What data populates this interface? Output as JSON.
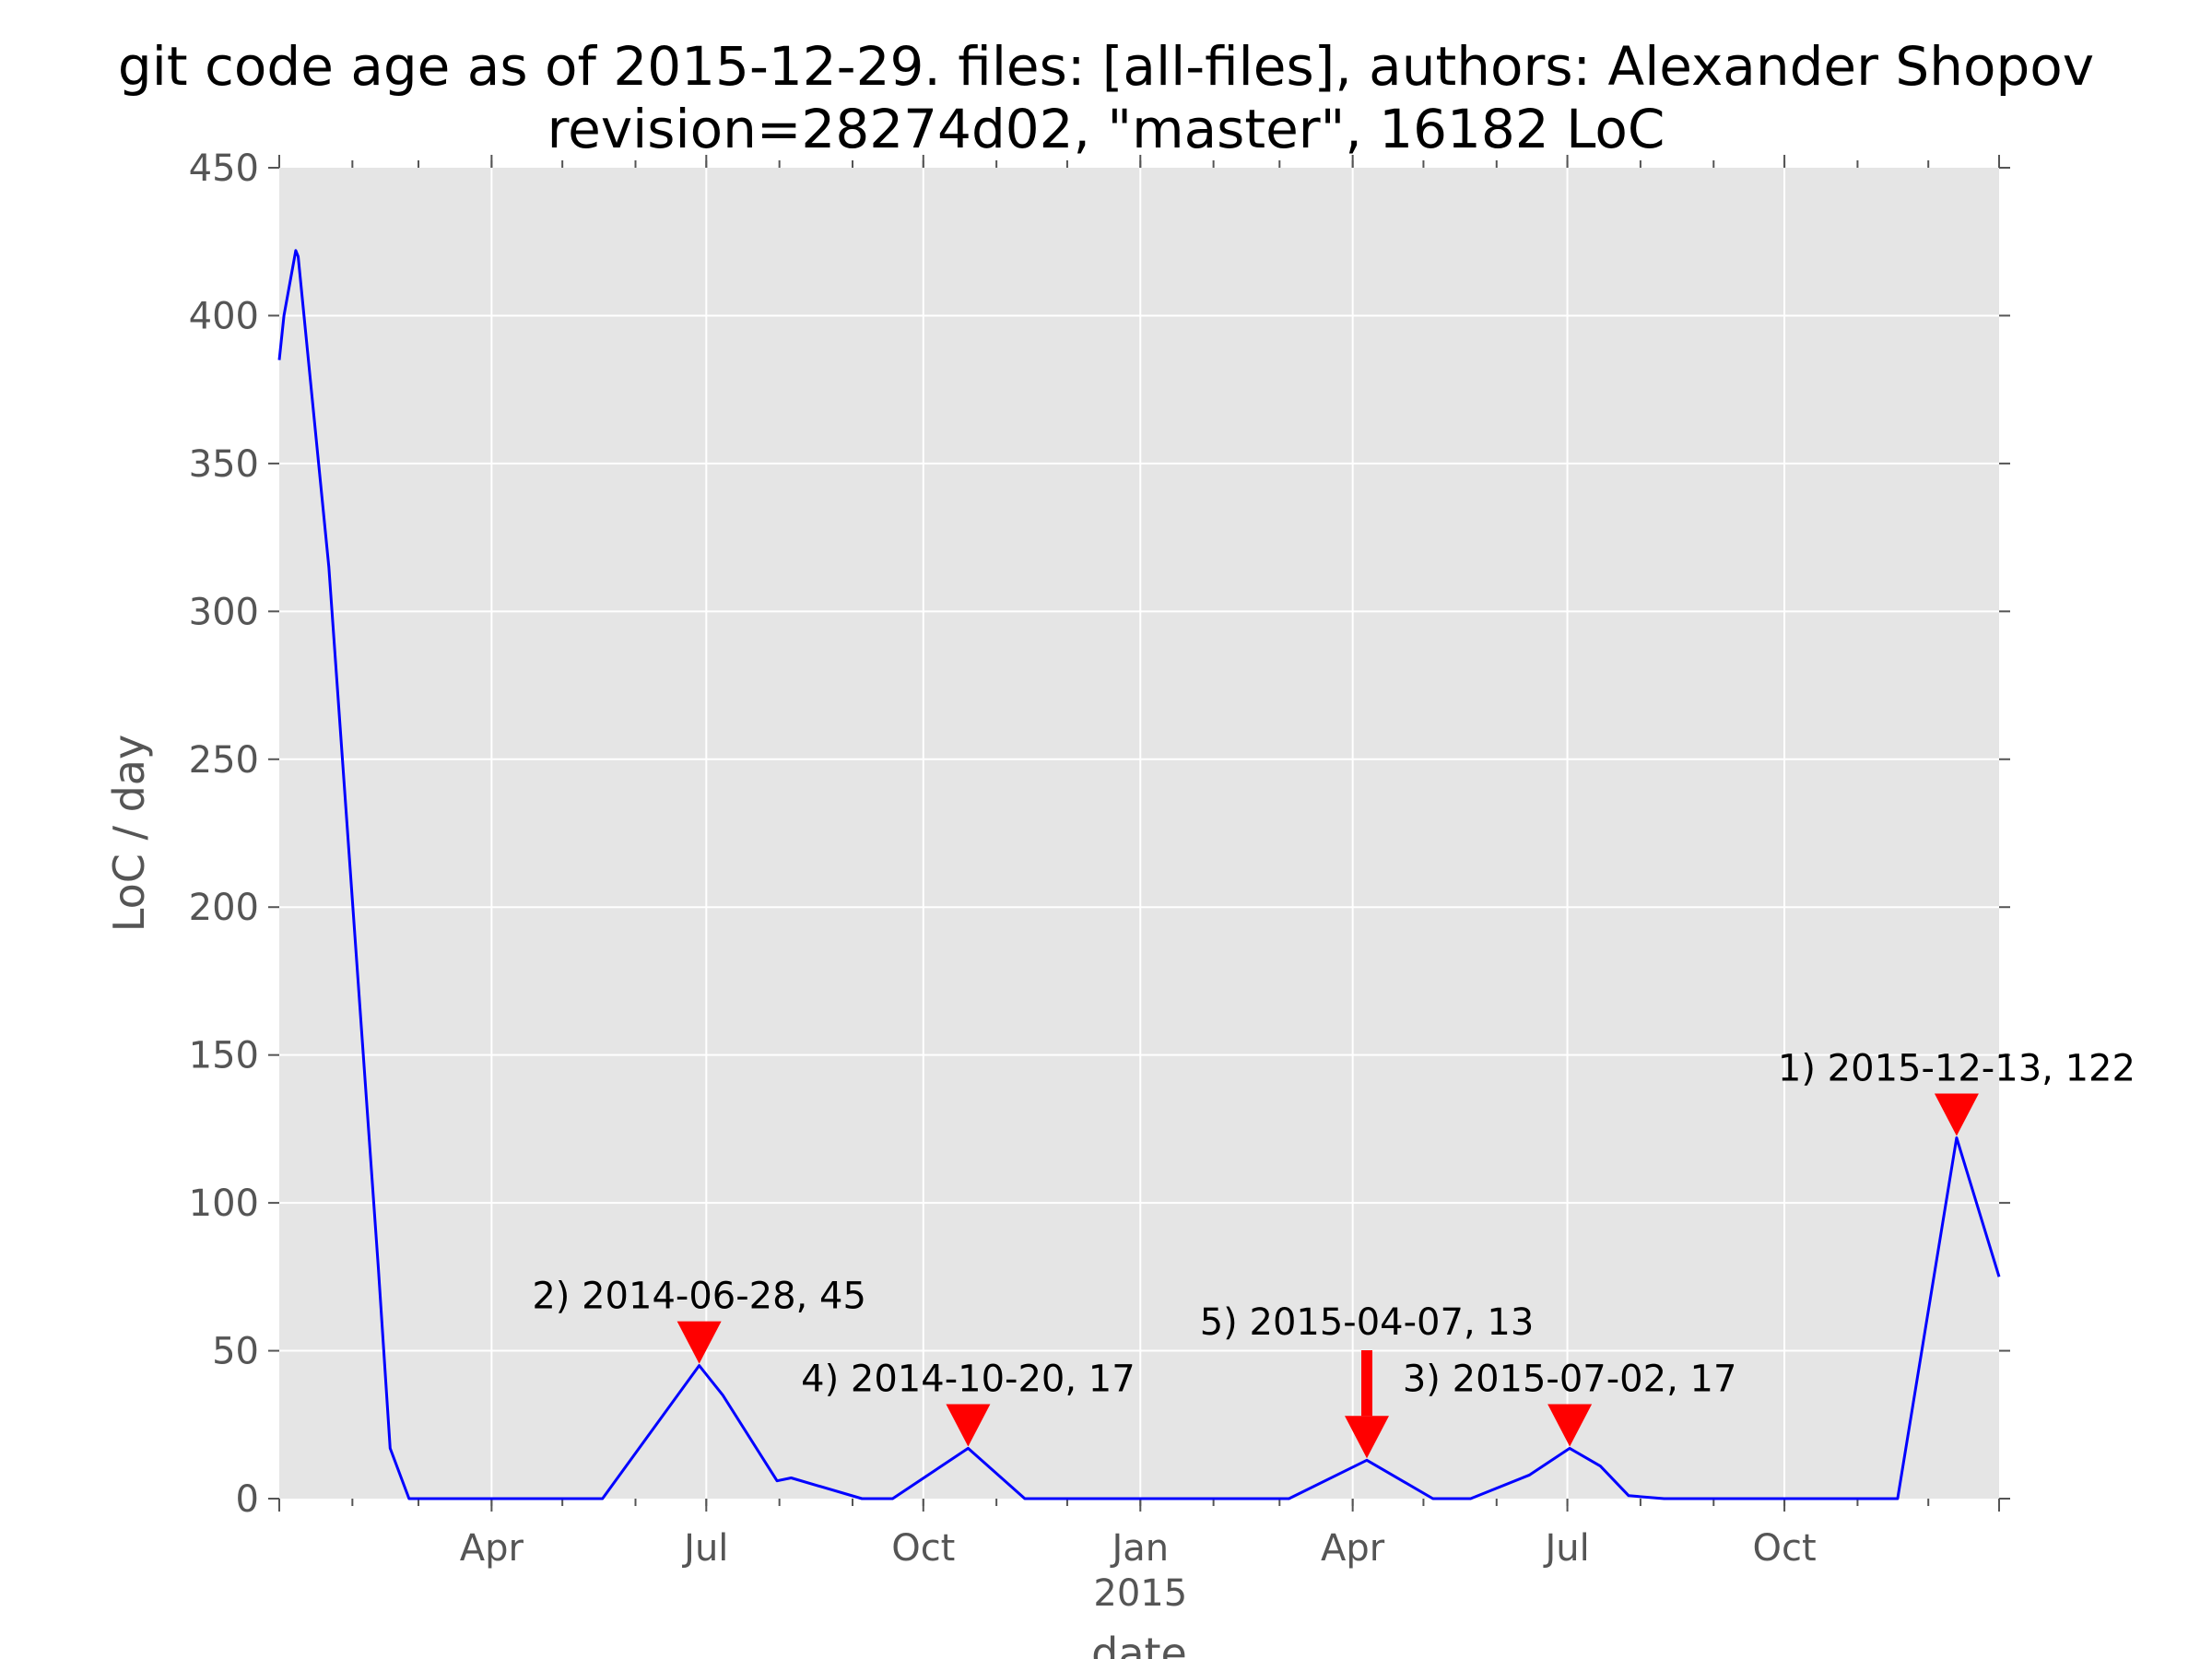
{
  "chart_data": {
    "type": "line",
    "title": "git code age as of 2015-12-29. files: [all-files], authors: Alexander Shopov",
    "subtitle": "revision=28274d02, \"master\", 16182 LoC",
    "xlabel": "date",
    "ylabel": "LoC / day",
    "xlim": [
      "2014-01-01",
      "2015-12-31"
    ],
    "ylim": [
      0,
      450
    ],
    "grid": true,
    "line_color": "#0000ff",
    "marker_color": "#ff0000",
    "plot_background": "#e5e5e5",
    "y_ticks": [
      0,
      50,
      100,
      150,
      200,
      250,
      300,
      350,
      400,
      450
    ],
    "x_ticks": [
      {
        "date": "2014-04-01",
        "label": "Apr",
        "sublabel": ""
      },
      {
        "date": "2014-07-01",
        "label": "Jul",
        "sublabel": ""
      },
      {
        "date": "2014-10-01",
        "label": "Oct",
        "sublabel": ""
      },
      {
        "date": "2015-01-01",
        "label": "Jan",
        "sublabel": "2015"
      },
      {
        "date": "2015-04-01",
        "label": "Apr",
        "sublabel": ""
      },
      {
        "date": "2015-07-01",
        "label": "Jul",
        "sublabel": ""
      },
      {
        "date": "2015-10-01",
        "label": "Oct",
        "sublabel": ""
      }
    ],
    "series": [
      {
        "points": [
          [
            "2014-01-01",
            385
          ],
          [
            "2014-01-03",
            400
          ],
          [
            "2014-01-08",
            422
          ],
          [
            "2014-01-09",
            420
          ],
          [
            "2014-01-22",
            315
          ],
          [
            "2014-02-12",
            78
          ],
          [
            "2014-02-17",
            17
          ],
          [
            "2014-02-25",
            0
          ],
          [
            "2014-05-18",
            0
          ],
          [
            "2014-06-28",
            45
          ],
          [
            "2014-07-08",
            35
          ],
          [
            "2014-07-31",
            6
          ],
          [
            "2014-08-06",
            7
          ],
          [
            "2014-09-05",
            0
          ],
          [
            "2014-09-18",
            0
          ],
          [
            "2014-10-20",
            17
          ],
          [
            "2014-11-13",
            0
          ],
          [
            "2015-03-05",
            0
          ],
          [
            "2015-04-07",
            13
          ],
          [
            "2015-05-05",
            0
          ],
          [
            "2015-05-21",
            0
          ],
          [
            "2015-06-15",
            8
          ],
          [
            "2015-07-02",
            17
          ],
          [
            "2015-07-15",
            11
          ],
          [
            "2015-07-27",
            1
          ],
          [
            "2015-08-11",
            0
          ],
          [
            "2015-11-18",
            0
          ],
          [
            "2015-12-13",
            122
          ],
          [
            "2015-12-31",
            75
          ]
        ]
      }
    ],
    "annotations": [
      {
        "label": "1) 2015-12-13, 122",
        "date": "2015-12-13",
        "value": 122
      },
      {
        "label": "2) 2014-06-28, 45",
        "date": "2014-06-28",
        "value": 45
      },
      {
        "label": "3) 2015-07-02, 17",
        "date": "2015-07-02",
        "value": 17
      },
      {
        "label": "4) 2014-10-20, 17",
        "date": "2014-10-20",
        "value": 17
      },
      {
        "label": "5) 2015-04-07, 13",
        "date": "2015-04-07",
        "value": 13
      }
    ]
  }
}
